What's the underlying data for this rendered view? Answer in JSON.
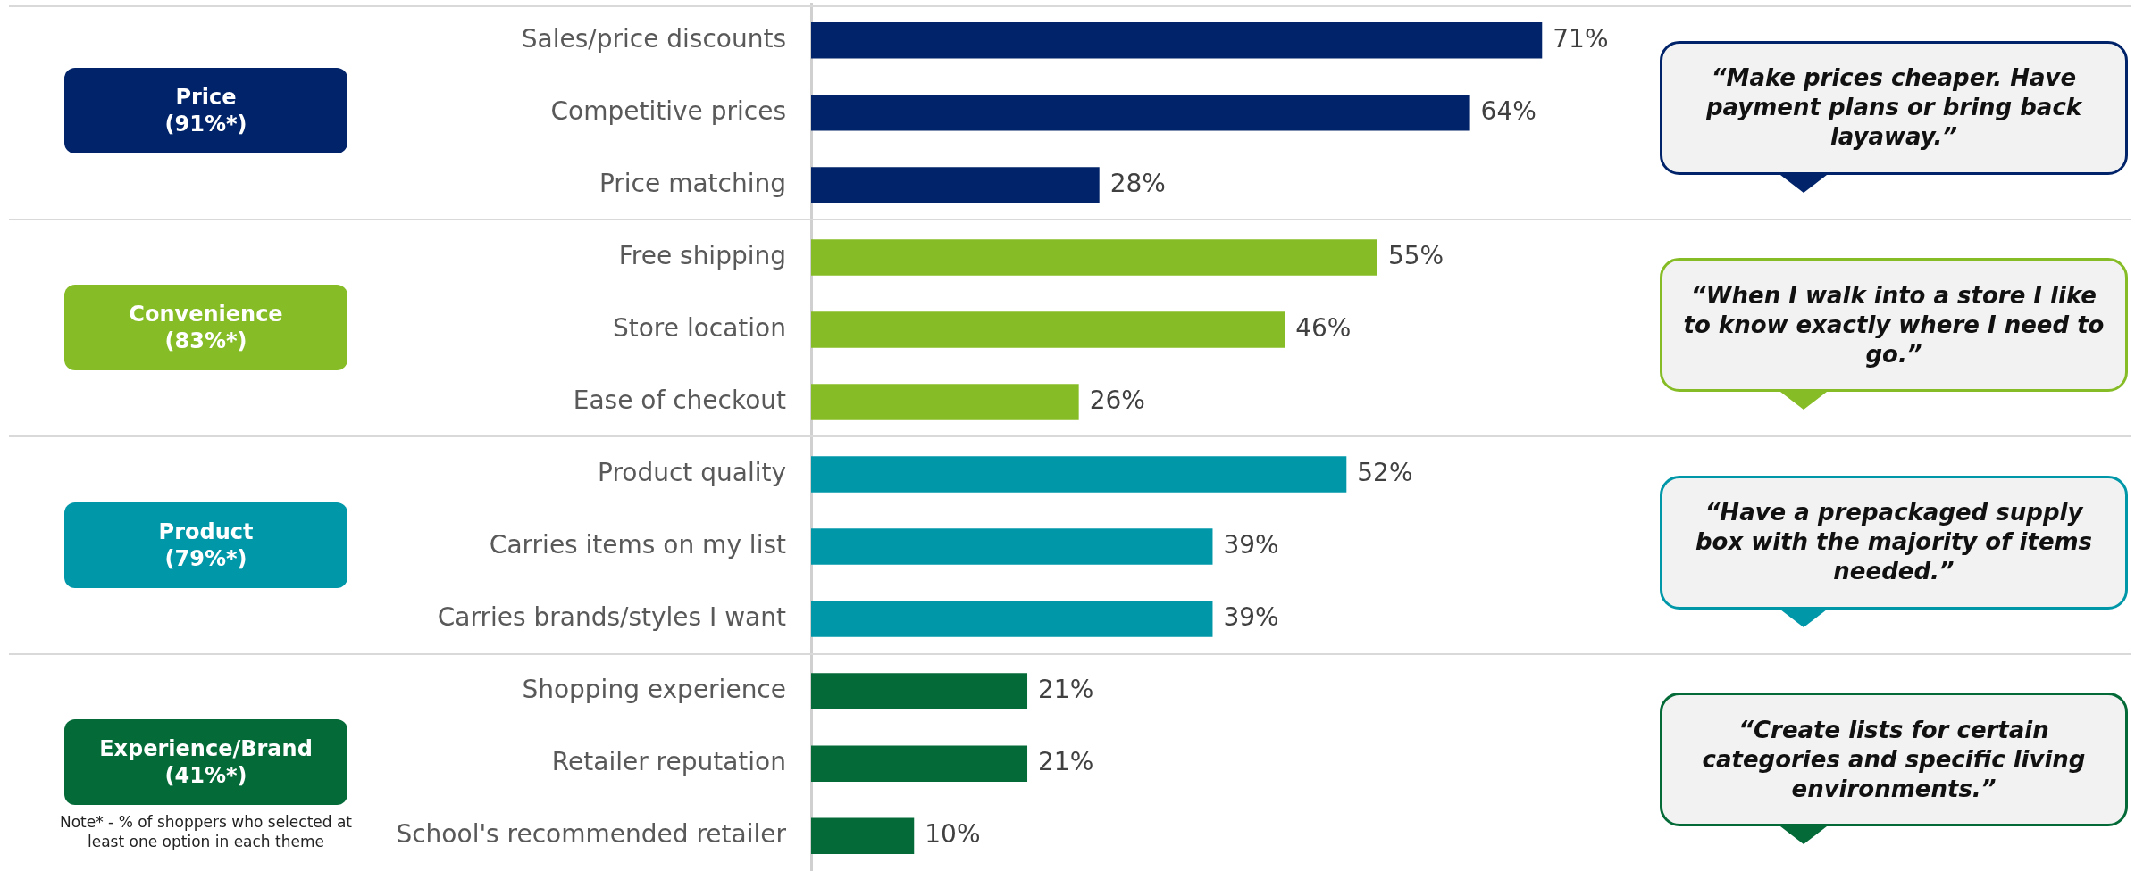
{
  "chart_data": {
    "type": "bar",
    "orientation": "horizontal",
    "categories": [
      "Sales/price discounts",
      "Competitive prices",
      "Price matching",
      "Free shipping",
      "Store location",
      "Ease of checkout",
      "Product quality",
      "Carries items on my list",
      "Carries brands/styles I want",
      "Shopping experience",
      "Retailer reputation",
      "School's recommended retailer"
    ],
    "values": [
      71,
      64,
      28,
      55,
      46,
      26,
      52,
      39,
      39,
      21,
      21,
      10
    ],
    "value_labels": [
      "71%",
      "64%",
      "28%",
      "55%",
      "46%",
      "26%",
      "52%",
      "39%",
      "39%",
      "21%",
      "21%",
      "10%"
    ],
    "colors": [
      "#002369",
      "#002369",
      "#002369",
      "#86bc25",
      "#86bc25",
      "#86bc25",
      "#0097a9",
      "#0097a9",
      "#0097a9",
      "#046a38",
      "#046a38",
      "#046a38"
    ],
    "tick_labels": "y",
    "grid": false,
    "annotations": [
      "Price\n(91%*)",
      "Convenience\n(83%*)",
      "Product\n(79%*)",
      "Experience/Brand\n(41%*)",
      "“Make prices cheaper. Have payment plans or bring back layaway.”",
      "“When I walk into a store I like to know exactly where I need to go.”",
      "“Have a prepackaged supply box with the majority of items needed.”",
      "“Create lists for certain categories and specific living environments.”",
      "Note* - % of shoppers who selected at least one option in each theme"
    ]
  }
}
